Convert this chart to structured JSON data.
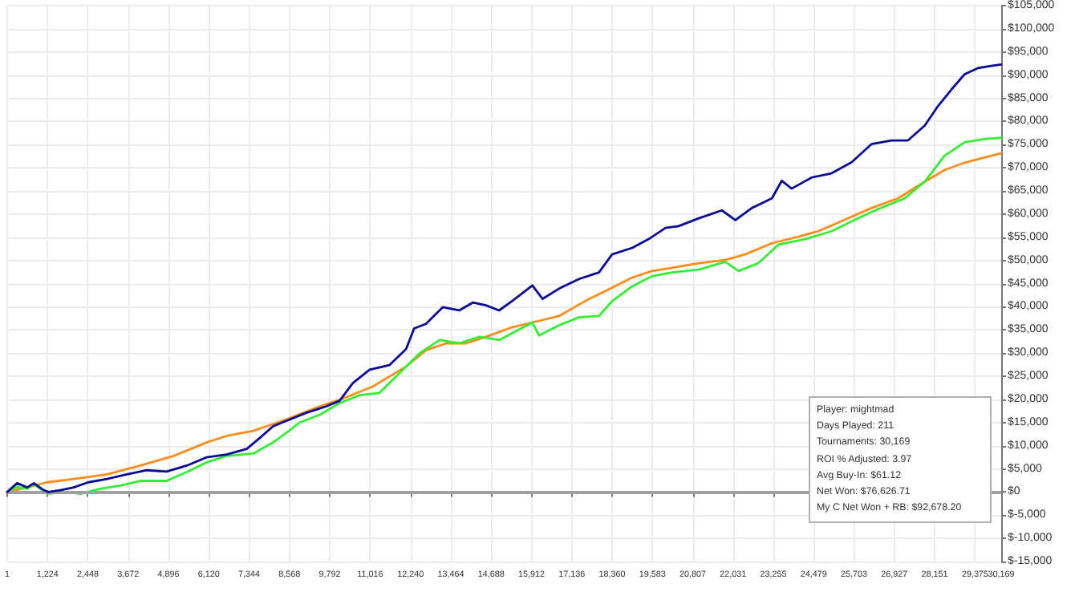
{
  "chart_data": {
    "type": "line",
    "grid": true,
    "marker": "none",
    "line_style": "solid",
    "xlim": [
      1,
      30169
    ],
    "ylim": [
      -15000,
      105000
    ],
    "xticks": [
      1,
      {
        "value": 1224,
        "label": "1,224"
      },
      {
        "value": 2448,
        "label": "2,448"
      },
      {
        "value": 3672,
        "label": "3,672"
      },
      {
        "value": 4896,
        "label": "4,896"
      },
      {
        "value": 6120,
        "label": "6,120"
      },
      {
        "value": 7344,
        "label": "7,344"
      },
      {
        "value": 8568,
        "label": "8,568"
      },
      {
        "value": 9792,
        "label": "9,792"
      },
      {
        "value": 11016,
        "label": "11,016"
      },
      {
        "value": 12240,
        "label": "12,240"
      },
      {
        "value": 13464,
        "label": "13,464"
      },
      {
        "value": 14688,
        "label": "14,688"
      },
      {
        "value": 15912,
        "label": "15,912"
      },
      {
        "value": 17136,
        "label": "17,136"
      },
      {
        "value": 18360,
        "label": "18,360"
      },
      {
        "value": 19583,
        "label": "19,583"
      },
      {
        "value": 20807,
        "label": "20,807"
      },
      {
        "value": 22031,
        "label": "22,031"
      },
      {
        "value": 23255,
        "label": "23,255"
      },
      {
        "value": 24479,
        "label": "24,479"
      },
      {
        "value": 25703,
        "label": "25,703"
      },
      {
        "value": 26927,
        "label": "26,927"
      },
      {
        "value": 28151,
        "label": "28,151"
      },
      {
        "value": 29375,
        "label": "29,375"
      },
      {
        "value": 30169,
        "label": "30,169"
      }
    ],
    "yticks": [
      {
        "value": -15000,
        "label": "$-15,000"
      },
      {
        "value": -10000,
        "label": "$-10,000"
      },
      {
        "value": -5000,
        "label": "$-5,000"
      },
      {
        "value": 0,
        "label": "$0"
      },
      {
        "value": 5000,
        "label": "$5,000"
      },
      {
        "value": 10000,
        "label": "$10,000"
      },
      {
        "value": 15000,
        "label": "$15,000"
      },
      {
        "value": 20000,
        "label": "$20,000"
      },
      {
        "value": 25000,
        "label": "$25,000"
      },
      {
        "value": 30000,
        "label": "$30,000"
      },
      {
        "value": 35000,
        "label": "$35,000"
      },
      {
        "value": 40000,
        "label": "$40,000"
      },
      {
        "value": 45000,
        "label": "$45,000"
      },
      {
        "value": 50000,
        "label": "$50,000"
      },
      {
        "value": 55000,
        "label": "$55,000"
      },
      {
        "value": 60000,
        "label": "$60,000"
      },
      {
        "value": 65000,
        "label": "$65,000"
      },
      {
        "value": 70000,
        "label": "$70,000"
      },
      {
        "value": 75000,
        "label": "$75,000"
      },
      {
        "value": 80000,
        "label": "$80,000"
      },
      {
        "value": 85000,
        "label": "$85,000"
      },
      {
        "value": 90000,
        "label": "$90,000"
      },
      {
        "value": 95000,
        "label": "$95,000"
      },
      {
        "value": 100000,
        "label": "$100,000"
      },
      {
        "value": 105000,
        "label": "$105,000"
      }
    ],
    "ref_lines": [
      {
        "axis": "y",
        "value": 0,
        "color": "#a0a0a0"
      }
    ],
    "annotations": [
      "Player: mightmad",
      "Days Played: 211",
      "Tournaments: 30,169",
      "ROI % Adjusted: 3.97",
      "Avg Buy-In: $61.12",
      "Net Won: $76,626.71",
      "My C Net Won + RB: $92,678.20"
    ],
    "series": [
      {
        "color": "#ff8c1a",
        "x": [
          1,
          610,
          1210,
          2020,
          3030,
          4040,
          5050,
          6050,
          6660,
          7470,
          8480,
          9490,
          10090,
          11100,
          12110,
          12710,
          13320,
          13920,
          14530,
          15340,
          15940,
          16750,
          17560,
          18160,
          18970,
          19570,
          20180,
          20990,
          21790,
          22400,
          23210,
          24010,
          24620,
          25430,
          26230,
          27040,
          27850,
          28450,
          29060,
          29660,
          30169
        ],
        "values": [
          0,
          1000,
          2100,
          2800,
          3800,
          5700,
          7800,
          10700,
          12100,
          13200,
          15700,
          18500,
          19900,
          22800,
          27100,
          30600,
          32100,
          32100,
          33500,
          35600,
          36600,
          38000,
          41300,
          43400,
          46300,
          47700,
          48400,
          49400,
          50100,
          51300,
          53700,
          55100,
          56300,
          58800,
          61300,
          63400,
          67000,
          69500,
          71100,
          72200,
          73100
        ]
      },
      {
        "color": "#33ee33",
        "x": [
          1,
          300,
          610,
          810,
          1210,
          1820,
          2220,
          2830,
          3430,
          4040,
          4840,
          5450,
          6050,
          6660,
          7470,
          8070,
          8480,
          8880,
          9490,
          10090,
          10700,
          11300,
          11700,
          12110,
          12510,
          13120,
          13720,
          14330,
          14930,
          15940,
          16140,
          16750,
          17350,
          17960,
          18360,
          18970,
          19570,
          20180,
          20990,
          21790,
          22200,
          22800,
          23410,
          24220,
          25020,
          25830,
          26440,
          27240,
          27850,
          28450,
          29060,
          29660,
          30169
        ],
        "values": [
          0,
          1100,
          700,
          1700,
          -400,
          0,
          -400,
          700,
          1400,
          2400,
          2400,
          4300,
          6400,
          7800,
          8300,
          10700,
          12800,
          15000,
          16700,
          19200,
          20900,
          21400,
          24200,
          27100,
          29900,
          32800,
          32100,
          33500,
          32800,
          36600,
          33800,
          36000,
          37700,
          38000,
          41200,
          44400,
          46600,
          47400,
          48000,
          49700,
          47700,
          49400,
          53400,
          54600,
          56300,
          59100,
          61100,
          63400,
          67000,
          72600,
          75500,
          76200,
          76500
        ]
      },
      {
        "color": "#0a0a96",
        "x": [
          1,
          300,
          610,
          810,
          1110,
          1250,
          1610,
          2020,
          2460,
          3030,
          3630,
          4240,
          4840,
          5450,
          6050,
          6660,
          7270,
          7670,
          8070,
          8480,
          9080,
          9690,
          10090,
          10490,
          11000,
          11600,
          12110,
          12350,
          12710,
          13220,
          13720,
          14130,
          14530,
          14930,
          15340,
          15940,
          16250,
          16750,
          17360,
          17960,
          18360,
          18970,
          19470,
          19980,
          20380,
          20990,
          21690,
          22100,
          22600,
          23210,
          23510,
          23810,
          24420,
          25020,
          25630,
          26230,
          26840,
          27340,
          27850,
          28250,
          28660,
          29060,
          29460,
          29870,
          30169
        ],
        "values": [
          0,
          1900,
          1000,
          1900,
          400,
          0,
          400,
          1000,
          2100,
          2800,
          3800,
          4700,
          4400,
          5700,
          7500,
          8100,
          9300,
          11700,
          14200,
          15400,
          17100,
          18500,
          19700,
          23500,
          26400,
          27400,
          30900,
          35300,
          36300,
          39900,
          39200,
          40900,
          40300,
          39200,
          41300,
          44600,
          41700,
          43900,
          46000,
          47400,
          51300,
          52700,
          54600,
          57000,
          57400,
          59100,
          60800,
          58700,
          61300,
          63400,
          67200,
          65500,
          67900,
          68800,
          71200,
          75100,
          75900,
          75900,
          79100,
          83300,
          86900,
          90200,
          91500,
          92000,
          92300
        ]
      }
    ]
  }
}
